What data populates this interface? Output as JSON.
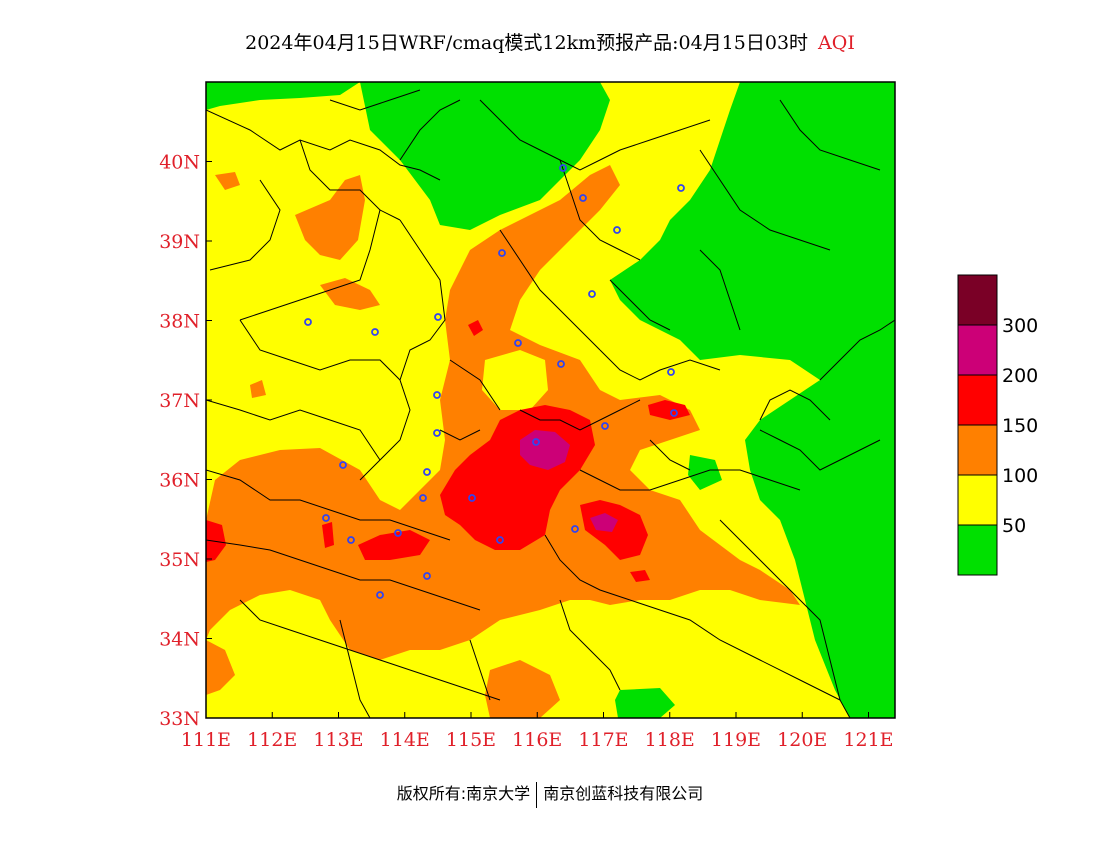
{
  "title": {
    "main": "2024年04月15日WRF/cmaq模式12km预报产品:04月15日03时",
    "product": "AQI"
  },
  "map": {
    "lon_ticks": [
      "111E",
      "112E",
      "113E",
      "114E",
      "115E",
      "116E",
      "117E",
      "118E",
      "119E",
      "120E",
      "121E"
    ],
    "lat_ticks": [
      "33N",
      "34N",
      "35N",
      "36N",
      "37N",
      "38N",
      "39N",
      "40N"
    ],
    "lon_range": [
      111,
      121.4
    ],
    "lat_range": [
      33,
      41
    ]
  },
  "legend": {
    "labels": [
      "50",
      "100",
      "150",
      "200",
      "300"
    ],
    "colors": [
      "#00e000",
      "#ffff00",
      "#ff8000",
      "#ff0000",
      "#cc0077",
      "#7a0026"
    ]
  },
  "footer": {
    "left": "版权所有:南京大学",
    "right": "南京创蓝科技有限公司"
  }
}
